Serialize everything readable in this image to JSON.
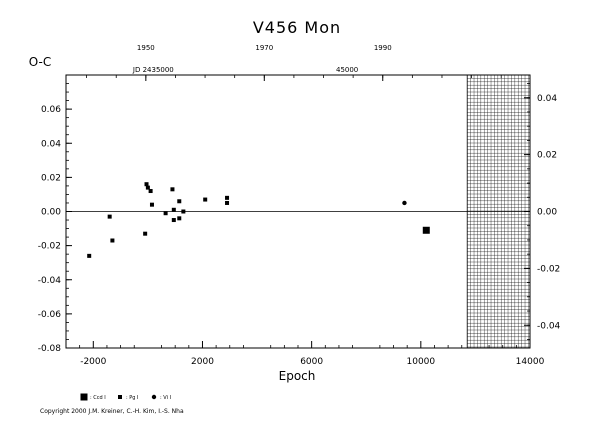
{
  "chart_data": {
    "type": "scatter",
    "title": "V456 Mon",
    "ylabel": "O-C",
    "xlabel": "Epoch",
    "xlim": [
      -3000,
      14000
    ],
    "ylim": [
      -0.08,
      0.08
    ],
    "x_ticks": [
      -2000,
      2000,
      6000,
      10000,
      14000
    ],
    "x_tick_labels": [
      "-2000",
      "2000",
      "6000",
      "10000",
      "14000"
    ],
    "y_ticks_left": [
      0.06,
      0.04,
      0.02,
      0.0,
      -0.02,
      -0.04,
      -0.06,
      -0.08
    ],
    "y_tick_labels_left": [
      "0.06",
      "0.04",
      "0.02",
      "0.00",
      "-0.02",
      "-0.04",
      "-0.06",
      "-0.08"
    ],
    "right_axis": {
      "ylim": [
        -0.048,
        0.048
      ],
      "ticks": [
        0.04,
        0.02,
        0.0,
        -0.02,
        -0.04
      ],
      "tick_labels": [
        "0.04",
        "0.02",
        "0.00",
        "-0.02",
        "-0.04"
      ]
    },
    "top_axis": {
      "year_ticks": [
        1950,
        1970,
        1990
      ],
      "year_labels": [
        "1950",
        "1970",
        "1990"
      ],
      "year_tick_epochs": [
        -75,
        4265,
        8605
      ],
      "jd_labels": [
        {
          "text": "JD 2435000",
          "epoch": 200
        },
        {
          "text": "45000",
          "epoch": 7300
        }
      ]
    },
    "zero_line": true,
    "future_region_start_epoch": 11700,
    "series": [
      {
        "name": "Ccd I",
        "marker": "square-large",
        "points": [
          [
            10200,
            -0.011
          ]
        ]
      },
      {
        "name": "Pg I",
        "marker": "square-small",
        "points": [
          [
            -2150,
            -0.026
          ],
          [
            -1400,
            -0.003
          ],
          [
            -1300,
            -0.017
          ],
          [
            -100,
            -0.013
          ],
          [
            -50,
            0.016
          ],
          [
            0,
            0.014
          ],
          [
            100,
            0.012
          ],
          [
            150,
            0.004
          ],
          [
            650,
            -0.001
          ],
          [
            900,
            0.013
          ],
          [
            950,
            0.001
          ],
          [
            950,
            -0.005
          ],
          [
            1150,
            0.006
          ],
          [
            1150,
            -0.004
          ],
          [
            1300,
            0.0
          ],
          [
            2100,
            0.007
          ],
          [
            2900,
            0.008
          ],
          [
            2900,
            0.005
          ]
        ]
      },
      {
        "name": "Vi I",
        "marker": "circle",
        "points": [
          [
            9400,
            0.005
          ]
        ]
      }
    ],
    "legend": [
      {
        "label": ": Ccd I",
        "marker": "square-large"
      },
      {
        "label": ": Pg I",
        "marker": "square-small"
      },
      {
        "label": ": Vi I",
        "marker": "circle"
      }
    ]
  },
  "copyright": "Copyright 2000 J.M. Kreiner, C.-H. Kim, I.-S. Nha"
}
